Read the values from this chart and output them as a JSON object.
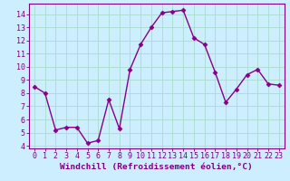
{
  "x": [
    0,
    1,
    2,
    3,
    4,
    5,
    6,
    7,
    8,
    9,
    10,
    11,
    12,
    13,
    14,
    15,
    16,
    17,
    18,
    19,
    20,
    21,
    22,
    23
  ],
  "y": [
    8.5,
    8.0,
    5.2,
    5.4,
    5.4,
    4.2,
    4.4,
    7.5,
    5.3,
    9.8,
    11.7,
    13.0,
    14.1,
    14.2,
    14.3,
    12.2,
    11.7,
    9.6,
    7.3,
    8.3,
    9.4,
    9.8,
    8.7,
    8.6
  ],
  "line_color": "#880088",
  "marker": "D",
  "markersize": 2.5,
  "linewidth": 1.0,
  "xlim": [
    -0.5,
    23.5
  ],
  "ylim": [
    3.8,
    14.8
  ],
  "yticks": [
    4,
    5,
    6,
    7,
    8,
    9,
    10,
    11,
    12,
    13,
    14
  ],
  "xticks": [
    0,
    1,
    2,
    3,
    4,
    5,
    6,
    7,
    8,
    9,
    10,
    11,
    12,
    13,
    14,
    15,
    16,
    17,
    18,
    19,
    20,
    21,
    22,
    23
  ],
  "xlabel": "Windchill (Refroidissement éolien,°C)",
  "xlabel_fontsize": 6.8,
  "tick_fontsize": 6.0,
  "bg_color": "#cceeff",
  "grid_color": "#aaddcc",
  "axis_label_color": "#800080",
  "tick_color": "#800080",
  "spine_color": "#800080"
}
